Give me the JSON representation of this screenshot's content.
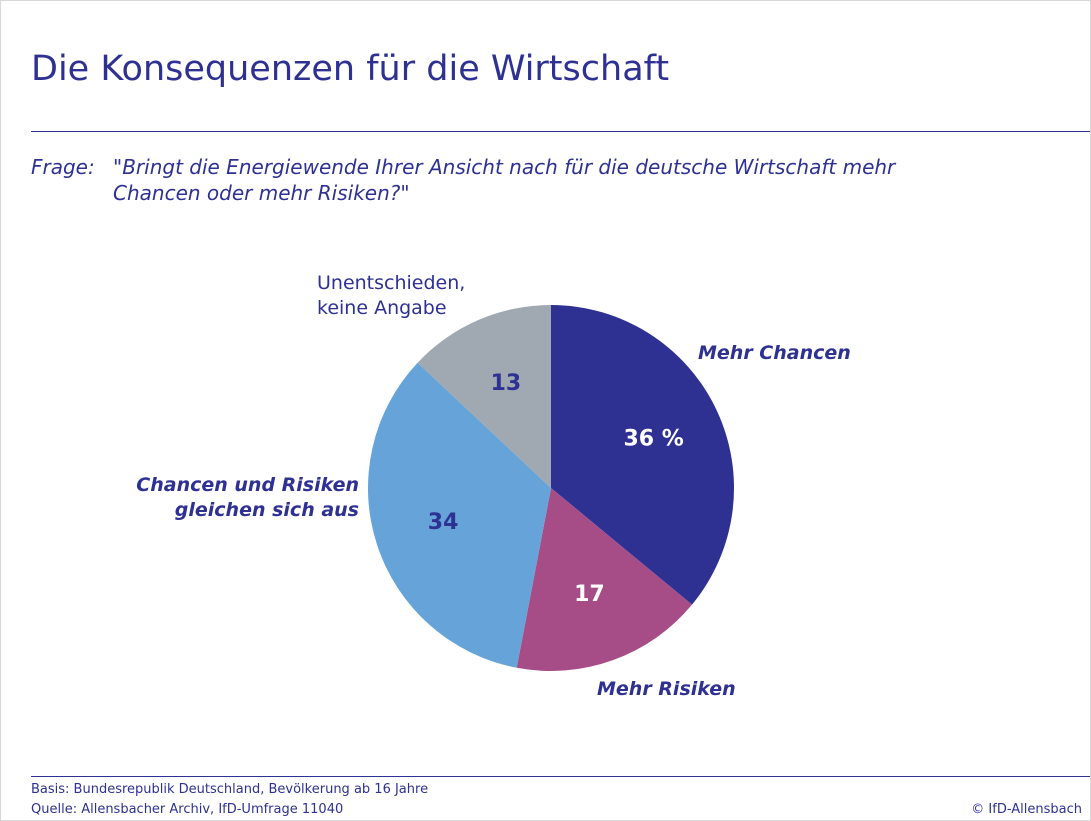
{
  "chart_data": {
    "type": "pie",
    "title": "Die Konsequenzen für die Wirtschaft",
    "question_label": "Frage:",
    "question": "\"Bringt die Energiewende Ihrer Ansicht nach für die deutsche Wirtschaft mehr Chancen oder mehr Risiken?\"",
    "categories": [
      "Mehr Chancen",
      "Mehr Risiken",
      "Chancen und Risiken gleichen sich aus",
      "Unentschieden, keine Angabe"
    ],
    "values": [
      36,
      17,
      34,
      13
    ],
    "value_labels": [
      "36 %",
      "17",
      "34",
      "13"
    ],
    "colors": [
      "#2e3192",
      "#a64d88",
      "#65a3d8",
      "#a0a9b2"
    ],
    "basis": "Basis: Bundesrepublik Deutschland, Bevölkerung ab 16 Jahre",
    "source": "Quelle: Allensbacher Archiv, IfD-Umfrage 11040",
    "copyright": "© IfD-Allensbach"
  }
}
